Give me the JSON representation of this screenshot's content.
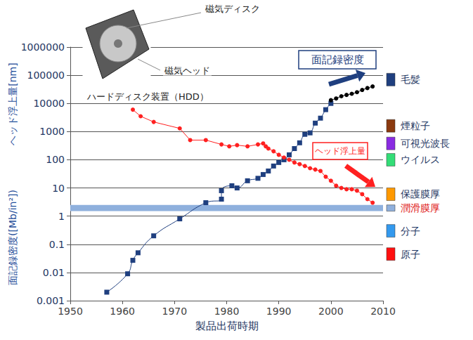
{
  "chart_data": {
    "type": "line",
    "log": "y",
    "grid": true,
    "legend": false,
    "x_label": "製品出荷時期",
    "y_labels": [
      "ヘッド浮上量[nm]",
      "面記録密度([Mb/in²])"
    ],
    "xlim": [
      1950,
      2010
    ],
    "xticks": [
      1950,
      1960,
      1970,
      1980,
      1990,
      2000,
      2010
    ],
    "ylim": [
      0.001,
      1000000
    ],
    "yticks": [
      0.001,
      0.01,
      0.1,
      1,
      10,
      100,
      1000,
      10000,
      100000,
      1000000
    ],
    "series": [
      {
        "name": "面記録密度",
        "color": "#1f3f7f",
        "marker": "square",
        "line_style": "smooth",
        "x": [
          1957,
          1961,
          1962,
          1963,
          1966,
          1971,
          1976,
          1979,
          1979,
          1981,
          1982,
          1984,
          1986,
          1987,
          1988,
          1989,
          1990,
          1991,
          1992,
          1993,
          1994,
          1995,
          1996,
          1997,
          1998,
          1999,
          2000
        ],
        "values": [
          0.002,
          0.009,
          0.027,
          0.05,
          0.2,
          0.8,
          3,
          4,
          8,
          12,
          10,
          18,
          22,
          30,
          40,
          60,
          80,
          100,
          150,
          250,
          400,
          800,
          900,
          2000,
          3000,
          6000,
          10000
        ]
      },
      {
        "color": "#000000",
        "marker": "circle",
        "line_style": "smooth",
        "x": [
          2000,
          2001,
          2002,
          2003,
          2004,
          2005,
          2006,
          2007,
          2008
        ],
        "values": [
          13000,
          15000,
          18000,
          20000,
          22000,
          25000,
          30000,
          35000,
          40000
        ]
      },
      {
        "name": "ヘッド浮上量",
        "color": "#ff2020",
        "marker": "circle",
        "line_style": "solid",
        "x": [
          1962,
          1963.5,
          1966,
          1971,
          1973,
          1976,
          1979,
          1980.5,
          1982,
          1984,
          1986,
          1987,
          1987.5,
          1988,
          1989,
          1990,
          1991,
          1992,
          1993,
          1994,
          1995,
          1996,
          1997,
          1998,
          1999,
          2000,
          2001,
          2002,
          2003,
          2004,
          2005,
          2006,
          2007,
          2008
        ],
        "values": [
          6000,
          3500,
          2200,
          1300,
          500,
          500,
          350,
          300,
          330,
          300,
          350,
          380,
          300,
          250,
          200,
          150,
          120,
          100,
          80,
          70,
          60,
          50,
          45,
          40,
          25,
          18,
          12,
          10,
          9,
          9,
          8,
          6,
          4,
          3
        ]
      }
    ],
    "reference_marks": [
      {
        "label": "毛髪",
        "value": 70000,
        "color": "#1f3f7f"
      },
      {
        "label": "煙粒子",
        "value": 1600,
        "color": "#8b3a0f"
      },
      {
        "label": "可視光波長",
        "value": 380,
        "color": "#8a2be2"
      },
      {
        "label": "ウイルス",
        "value": 100,
        "color": "#33dd77"
      },
      {
        "label": "保護膜厚",
        "value": 6,
        "color": "#ff9900"
      },
      {
        "label": "潤滑膜厚",
        "range": [
          1.5,
          2.5
        ],
        "color": "#8fb0dd"
      },
      {
        "label": "分子",
        "value": 0.3,
        "color": "#3399ee"
      },
      {
        "label": "原子",
        "value": 0.045,
        "color": "#ff1010"
      }
    ],
    "image_labels": [
      "磁気ディスク",
      "磁気ヘッド",
      "ハードディスク装置（HDD）"
    ]
  }
}
